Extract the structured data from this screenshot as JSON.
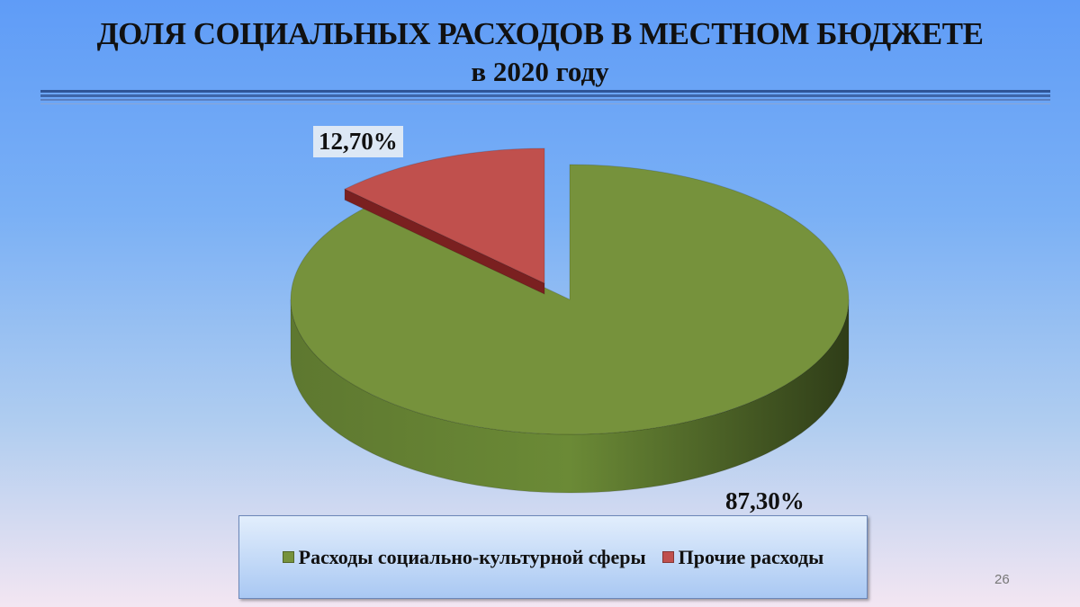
{
  "chart_data": {
    "type": "pie",
    "title": "ДОЛЯ СОЦИАЛЬНЫХ РАСХОДОВ В МЕСТНОМ БЮДЖЕТЕ",
    "subtitle": "в 2020 году",
    "categories": [
      "Расходы социально-культурной сферы",
      "Прочие расходы"
    ],
    "values": [
      87.3,
      12.7
    ],
    "data_labels": [
      "87,30%",
      "12,70%"
    ],
    "colors": [
      "#76923c",
      "#c0504d"
    ],
    "style": "3d-exploded",
    "legend_position": "bottom"
  },
  "page_number": "26"
}
